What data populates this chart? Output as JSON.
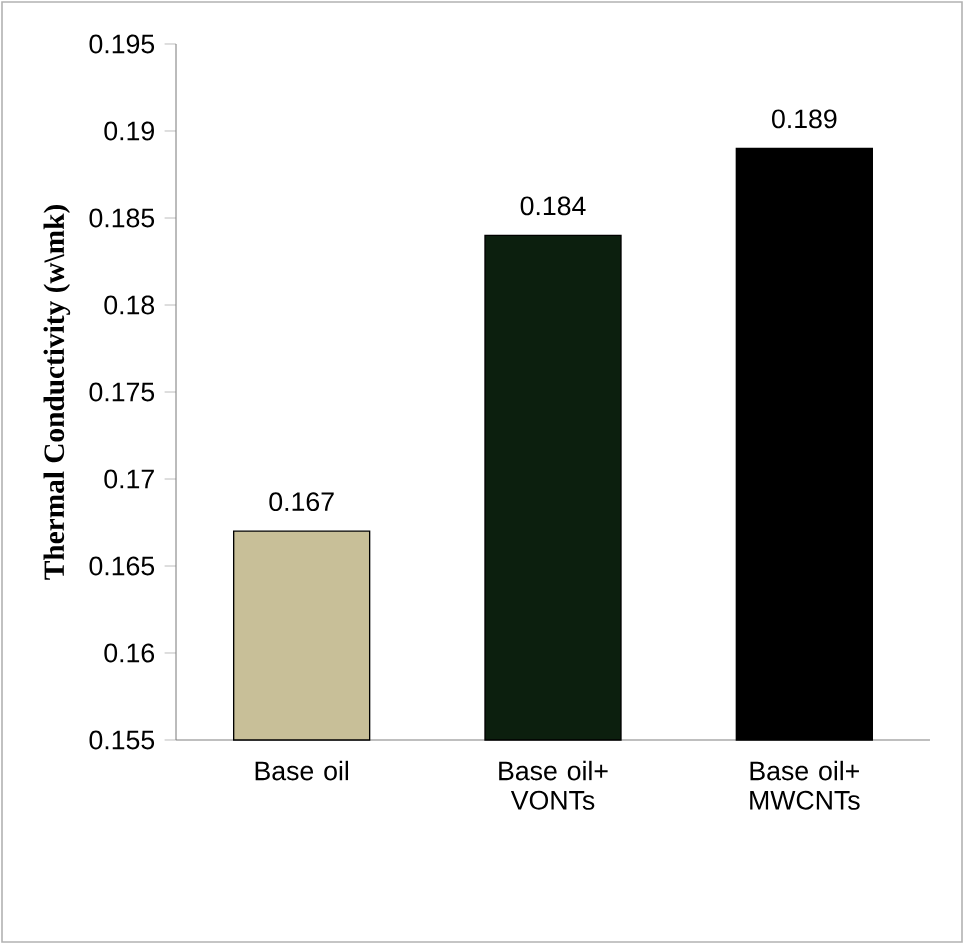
{
  "chart_data": {
    "type": "bar",
    "ylabel": "Thermal Conductivity (w\\mk)",
    "categories": [
      "Base oil",
      "Base oil+ VONTs",
      "Base oil+ MWCNTs"
    ],
    "values": [
      0.167,
      0.184,
      0.189
    ],
    "colors": [
      "#c8bf98",
      "#0c1f0e",
      "#000000"
    ],
    "ylim": [
      0.155,
      0.195
    ],
    "yticks": [
      0.155,
      0.16,
      0.165,
      0.17,
      0.175,
      0.18,
      0.185,
      0.19,
      0.195
    ],
    "data_labels": true
  }
}
